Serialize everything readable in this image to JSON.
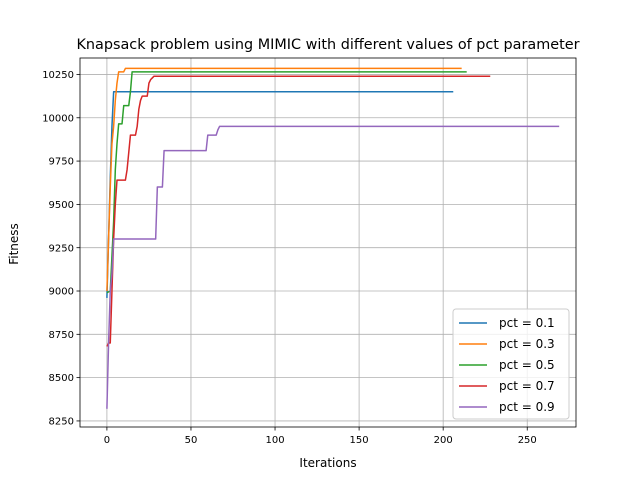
{
  "chart_data": {
    "type": "line",
    "title": "Knapsack problem using MIMIC with different values of pct parameter",
    "xlabel": "Iterations",
    "ylabel": "Fitness",
    "xlim": [
      -16,
      279
    ],
    "ylim": [
      8215,
      10345
    ],
    "xticks": [
      0,
      50,
      100,
      150,
      200,
      250
    ],
    "yticks": [
      8250,
      8500,
      8750,
      9000,
      9250,
      9500,
      9750,
      10000,
      10250
    ],
    "xtick_labels": [
      "0",
      "50",
      "100",
      "150",
      "200",
      "250"
    ],
    "ytick_labels": [
      "8250",
      "8500",
      "8750",
      "9000",
      "9250",
      "9500",
      "9750",
      "10000",
      "10250"
    ],
    "grid": true,
    "legend_position": "lower-right",
    "series": [
      {
        "name": "pct = 0.1",
        "color": "#1f77b4",
        "points": [
          [
            0,
            8960
          ],
          [
            1,
            9300
          ],
          [
            2,
            9650
          ],
          [
            3,
            9950
          ],
          [
            4,
            10150
          ],
          [
            206,
            10150
          ]
        ]
      },
      {
        "name": "pct = 0.3",
        "color": "#ff7f0e",
        "points": [
          [
            0,
            9000
          ],
          [
            2,
            9600
          ],
          [
            3,
            9850
          ],
          [
            4,
            9950
          ],
          [
            5,
            10100
          ],
          [
            6,
            10200
          ],
          [
            7,
            10265
          ],
          [
            10,
            10265
          ],
          [
            11,
            10285
          ],
          [
            211,
            10285
          ]
        ]
      },
      {
        "name": "pct = 0.5",
        "color": "#2ca02c",
        "points": [
          [
            0,
            8990
          ],
          [
            2,
            9000
          ],
          [
            4,
            9400
          ],
          [
            5,
            9700
          ],
          [
            6,
            9850
          ],
          [
            7,
            9965
          ],
          [
            9,
            9965
          ],
          [
            10,
            10070
          ],
          [
            13,
            10070
          ],
          [
            14,
            10150
          ],
          [
            15,
            10265
          ],
          [
            214,
            10265
          ]
        ]
      },
      {
        "name": "pct = 0.7",
        "color": "#d62728",
        "points": [
          [
            0,
            8680
          ],
          [
            1,
            8700
          ],
          [
            2,
            8700
          ],
          [
            3,
            9000
          ],
          [
            4,
            9300
          ],
          [
            5,
            9500
          ],
          [
            6,
            9640
          ],
          [
            11,
            9640
          ],
          [
            12,
            9700
          ],
          [
            13,
            9800
          ],
          [
            14,
            9900
          ],
          [
            17,
            9900
          ],
          [
            18,
            9950
          ],
          [
            19,
            10050
          ],
          [
            20,
            10100
          ],
          [
            21,
            10125
          ],
          [
            24,
            10125
          ],
          [
            25,
            10200
          ],
          [
            26,
            10220
          ],
          [
            27,
            10230
          ],
          [
            28,
            10240
          ],
          [
            228,
            10240
          ]
        ]
      },
      {
        "name": "pct = 0.9",
        "color": "#9467bd",
        "points": [
          [
            0,
            8320
          ],
          [
            1,
            8700
          ],
          [
            2,
            9000
          ],
          [
            3,
            9100
          ],
          [
            4,
            9300
          ],
          [
            29,
            9300
          ],
          [
            30,
            9600
          ],
          [
            33,
            9600
          ],
          [
            34,
            9810
          ],
          [
            59,
            9810
          ],
          [
            60,
            9900
          ],
          [
            65,
            9900
          ],
          [
            66,
            9930
          ],
          [
            67,
            9950
          ],
          [
            269,
            9950
          ]
        ]
      }
    ]
  }
}
